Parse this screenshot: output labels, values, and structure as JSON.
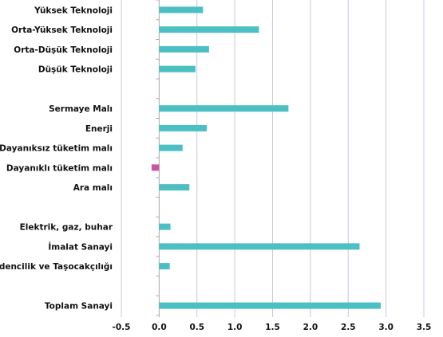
{
  "chart_data": {
    "type": "bar",
    "orientation": "horizontal",
    "title": "",
    "xlabel": "",
    "ylabel": "",
    "xlim": [
      -0.5,
      3.5
    ],
    "xticks": [
      -0.5,
      0.0,
      0.5,
      1.0,
      1.5,
      2.0,
      2.5,
      3.0,
      3.5
    ],
    "xtick_labels": [
      "-0.5",
      "0.0",
      "0.5",
      "1.0",
      "1.5",
      "2.0",
      "2.5",
      "3.0",
      "3.5"
    ],
    "grid": "vertical",
    "colors": {
      "positive": "#4bbfc3",
      "negative": "#c9579f",
      "grid": "#c8c8dc",
      "axis": "#aaaaaa"
    },
    "categories": [
      "Yüksek Teknoloji",
      "Orta-Yüksek Teknoloji",
      "Orta-Düşük Teknoloji",
      "Düşük Teknoloji",
      "",
      "Sermaye Malı",
      "Enerji",
      "Dayanıksız tüketim malı",
      "Dayanıklı tüketim malı",
      "Ara malı",
      "",
      "Elektrik, gaz, buhar",
      "İmalat Sanayi",
      "Madencilik ve Taşocakçılığı",
      "",
      "Toplam Sanayi"
    ],
    "values": [
      0.58,
      1.32,
      0.66,
      0.48,
      null,
      1.71,
      0.63,
      0.31,
      -0.1,
      0.4,
      null,
      0.15,
      2.65,
      0.14,
      null,
      2.93
    ]
  }
}
